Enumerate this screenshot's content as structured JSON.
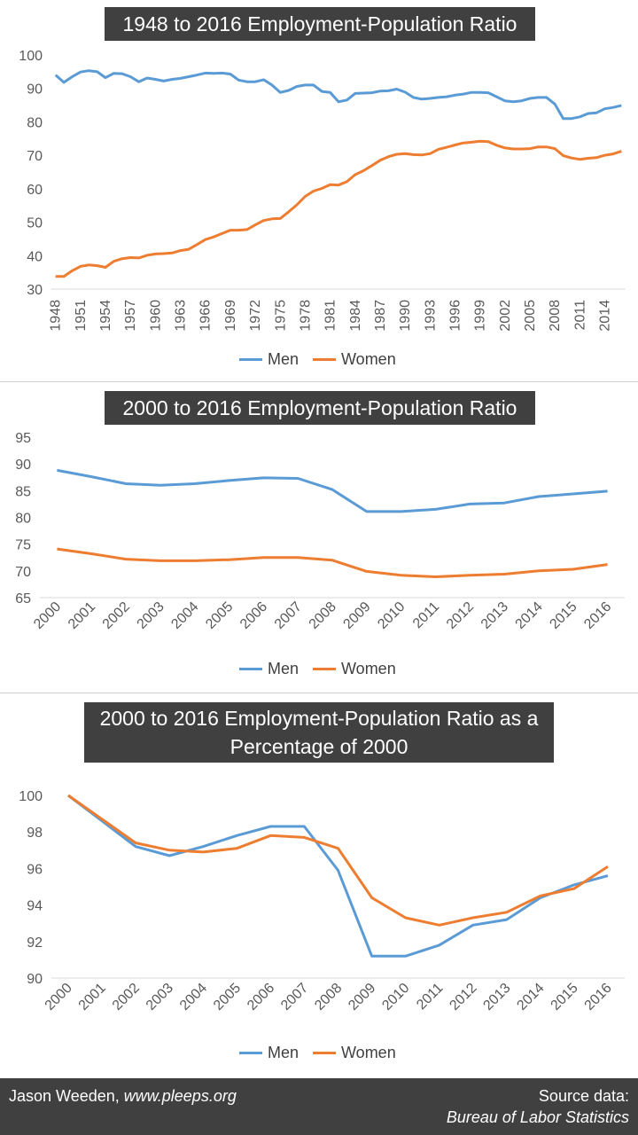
{
  "colors": {
    "men": "#5B9BD5",
    "women": "#ED7D31",
    "title_bg": "#404040",
    "axis_text": "#595959",
    "footer_bg": "#404040"
  },
  "chart_data": [
    {
      "type": "line",
      "title": "1948 to 2016 Employment-Population Ratio",
      "xlabel": "",
      "ylabel": "",
      "ylim": [
        30,
        100
      ],
      "yticks": [
        "30",
        "40",
        "50",
        "60",
        "70",
        "80",
        "90",
        "100"
      ],
      "x_tick_labels": [
        "1948",
        "1951",
        "1954",
        "1957",
        "1960",
        "1963",
        "1966",
        "1969",
        "1972",
        "1975",
        "1978",
        "1981",
        "1984",
        "1987",
        "1990",
        "1993",
        "1996",
        "1999",
        "2002",
        "2005",
        "2008",
        "2011",
        "2014"
      ],
      "x_start": 1948,
      "x_end": 2016,
      "grid": false,
      "legend": "bottom",
      "series": [
        {
          "name": "Men",
          "values": [
            94,
            91.8,
            93.5,
            94.9,
            95.3,
            95,
            93.2,
            94.5,
            94.4,
            93.5,
            92,
            93.1,
            92.7,
            92.2,
            92.7,
            93,
            93.5,
            94,
            94.6,
            94.5,
            94.6,
            94.3,
            92.5,
            92,
            92,
            92.6,
            91,
            88.8,
            89.4,
            90.6,
            91,
            91,
            89.1,
            88.8,
            86,
            86.5,
            88.5,
            88.6,
            88.7,
            89.2,
            89.3,
            89.8,
            88.9,
            87.3,
            86.8,
            87,
            87.3,
            87.5,
            88,
            88.3,
            88.8,
            88.8,
            88.7,
            87.5,
            86.3,
            86,
            86.3,
            87,
            87.3,
            87.3,
            85.3,
            81,
            81,
            81.5,
            82.5,
            82.7,
            83.9,
            84.3,
            84.9
          ]
        },
        {
          "name": "Women",
          "values": [
            33.8,
            33.8,
            35.5,
            36.8,
            37.2,
            37,
            36.5,
            38.3,
            39.1,
            39.4,
            39.3,
            40.1,
            40.5,
            40.6,
            40.8,
            41.5,
            41.9,
            43.3,
            44.8,
            45.6,
            46.6,
            47.6,
            47.6,
            47.8,
            49.2,
            50.5,
            51,
            51.1,
            53.1,
            55.2,
            57.7,
            59.3,
            60.1,
            61.2,
            61.1,
            62.1,
            64.2,
            65.4,
            66.9,
            68.5,
            69.6,
            70.3,
            70.5,
            70.2,
            70.1,
            70.5,
            71.8,
            72.4,
            73.1,
            73.7,
            73.9,
            74.2,
            74.1,
            73,
            72.2,
            71.9,
            71.9,
            72,
            72.5,
            72.5,
            72,
            69.9,
            69.2,
            68.8,
            69.1,
            69.3,
            70,
            70.4,
            71.2
          ]
        }
      ]
    },
    {
      "type": "line",
      "title": "2000 to 2016 Employment-Population Ratio",
      "xlabel": "",
      "ylabel": "",
      "ylim": [
        65,
        95
      ],
      "yticks": [
        "65",
        "70",
        "75",
        "80",
        "85",
        "90",
        "95"
      ],
      "categories": [
        "2000",
        "2001",
        "2002",
        "2003",
        "2004",
        "2005",
        "2006",
        "2007",
        "2008",
        "2009",
        "2010",
        "2011",
        "2012",
        "2013",
        "2014",
        "2015",
        "2016"
      ],
      "grid": false,
      "legend": "bottom",
      "series": [
        {
          "name": "Men",
          "values": [
            88.8,
            87.6,
            86.3,
            86,
            86.3,
            86.9,
            87.4,
            87.3,
            85.2,
            81.1,
            81.1,
            81.5,
            82.5,
            82.7,
            83.9,
            84.4,
            84.9
          ]
        },
        {
          "name": "Women",
          "values": [
            74.1,
            73.2,
            72.2,
            71.9,
            71.9,
            72.1,
            72.5,
            72.5,
            72,
            69.9,
            69.2,
            68.9,
            69.2,
            69.4,
            70,
            70.3,
            71.2
          ]
        }
      ]
    },
    {
      "type": "line",
      "title": "2000 to 2016 Employment-Population Ratio as a Percentage of 2000",
      "title_lines": [
        "2000 to 2016 Employment-Population Ratio as a",
        "Percentage of 2000"
      ],
      "xlabel": "",
      "ylabel": "",
      "ylim": [
        90,
        100
      ],
      "yticks": [
        "90",
        "92",
        "94",
        "96",
        "98",
        "100"
      ],
      "categories": [
        "2000",
        "2001",
        "2002",
        "2003",
        "2004",
        "2005",
        "2006",
        "2007",
        "2008",
        "2009",
        "2010",
        "2011",
        "2012",
        "2013",
        "2014",
        "2015",
        "2016"
      ],
      "grid": false,
      "legend": "bottom",
      "series": [
        {
          "name": "Men",
          "values": [
            100,
            98.6,
            97.2,
            96.7,
            97.2,
            97.8,
            98.3,
            98.3,
            95.9,
            91.2,
            91.2,
            91.8,
            92.9,
            93.2,
            94.4,
            95.1,
            95.6
          ]
        },
        {
          "name": "Women",
          "values": [
            100,
            98.7,
            97.4,
            97,
            96.9,
            97.1,
            97.8,
            97.7,
            97.1,
            94.4,
            93.3,
            92.9,
            93.3,
            93.6,
            94.5,
            94.9,
            96.1
          ]
        }
      ]
    }
  ],
  "footer": {
    "author": "Jason Weeden, ",
    "site": "www.pleeps.org",
    "source_label": "Source data:",
    "source": "Bureau of Labor Statistics"
  }
}
